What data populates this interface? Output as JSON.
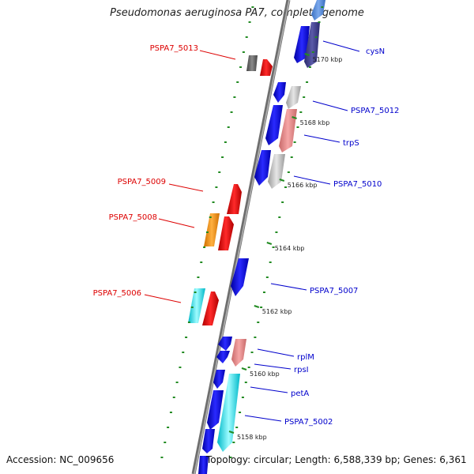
{
  "title": "Pseudomonas aeruginosa PA7, complete genome",
  "footer": {
    "accession": "Accession: NC_009656",
    "topology": "Topology: circular; Length: 6,588,339 bp; Genes: 6,361"
  },
  "colors": {
    "backbone": "#808080",
    "tick": "#228B22",
    "label_forward": "#0000CC",
    "label_reverse": "#DD0000"
  },
  "ticks": [
    "5170 kbp",
    "5168 kbp",
    "5166 kbp",
    "5164 kbp",
    "5162 kbp",
    "5160 kbp",
    "5158 kbp"
  ],
  "genes_right": [
    {
      "label": "cysN"
    },
    {
      "label": "PSPA7_5012"
    },
    {
      "label": "trpS"
    },
    {
      "label": "PSPA7_5010"
    },
    {
      "label": "PSPA7_5007"
    },
    {
      "label": "rplM"
    },
    {
      "label": "rpsI"
    },
    {
      "label": "petA"
    },
    {
      "label": "PSPA7_5002"
    }
  ],
  "genes_left": [
    {
      "label": "PSPA7_5013"
    },
    {
      "label": "PSPA7_5009"
    },
    {
      "label": "PSPA7_5008"
    },
    {
      "label": "PSPA7_5006"
    }
  ]
}
